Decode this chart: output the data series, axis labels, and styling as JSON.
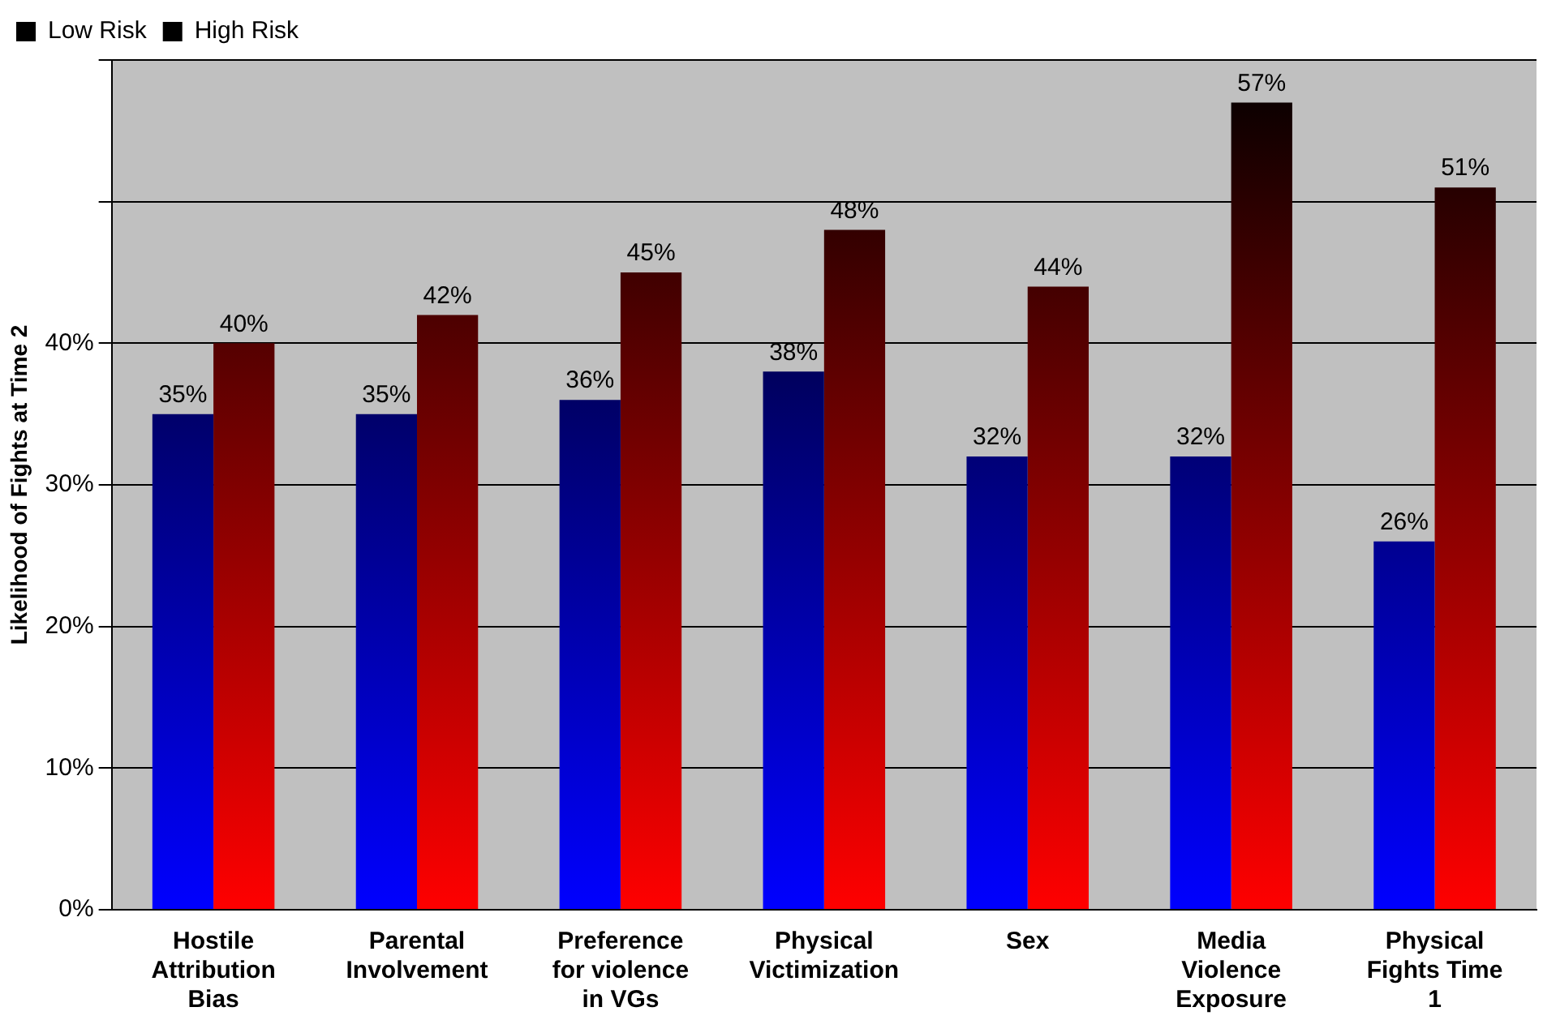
{
  "chart_data": {
    "type": "bar",
    "ylabel": "Likelihood of Fights at Time 2",
    "categories": [
      "Hostile Attribution Bias",
      "Parental Involvement",
      "Preference for violence in VGs",
      "Physical Victimization",
      "Sex",
      "Media Violence Exposure",
      "Physical Fights Time 1"
    ],
    "series": [
      {
        "name": "Low Risk",
        "color": "#0000ff",
        "values": [
          35,
          35,
          36,
          38,
          32,
          32,
          26
        ],
        "value_labels": [
          "35%",
          "35%",
          "36%",
          "38%",
          "32%",
          "32%",
          "26%"
        ]
      },
      {
        "name": "High Risk",
        "color": "#ff0000",
        "values": [
          40,
          42,
          45,
          48,
          44,
          57,
          51
        ],
        "value_labels": [
          "40%",
          "42%",
          "45%",
          "48%",
          "44%",
          "57%",
          "51%"
        ]
      }
    ],
    "ylim": [
      0,
      60
    ],
    "yticks": [
      {
        "value": 0,
        "label": "0%"
      },
      {
        "value": 10,
        "label": "10%"
      },
      {
        "value": 20,
        "label": "20%"
      },
      {
        "value": 30,
        "label": "30%"
      },
      {
        "value": 40,
        "label": "40%"
      },
      {
        "value": 50,
        "label": null
      },
      {
        "value": 60,
        "label": null
      }
    ],
    "grid": "y",
    "legend": "top left"
  }
}
